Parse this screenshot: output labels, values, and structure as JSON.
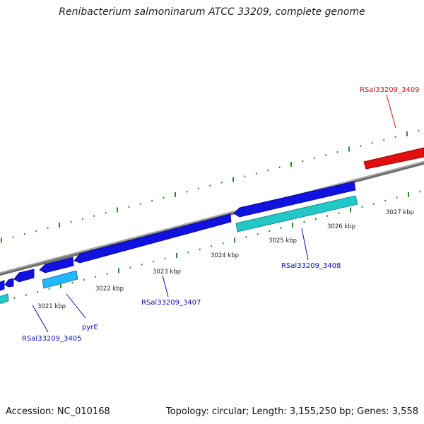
{
  "title": "Renibacterium salmoninarum ATCC 33209, complete genome",
  "footer": {
    "accession": "Accession: NC_010168",
    "summary": "Topology: circular; Length: 3,155,250 bp; Genes: 3,558"
  },
  "colors": {
    "backbone": "#8a8a8a",
    "tick": "#2a8a2a",
    "cds_forward": "#1212e0",
    "cds_reverse_light": "#22b8ff",
    "cds_cyan": "#22c8c8",
    "highlight": "#e01010",
    "label_blue": "#0a0aa8",
    "label_red": "#d01010"
  },
  "scale_labels": [
    "3021 kbp",
    "3022 kbp",
    "3023 kbp",
    "3024 kbp",
    "3025 kbp",
    "3026 kbp",
    "3027 kbp"
  ],
  "gene_labels": [
    {
      "name": "RSal33209_3409",
      "color": "red"
    },
    {
      "name": "RSal33209_3408",
      "color": "blue"
    },
    {
      "name": "RSal33209_3407",
      "color": "blue"
    },
    {
      "name": "pyrE",
      "color": "blue"
    },
    {
      "name": "RSal33209_3405",
      "color": "blue"
    }
  ]
}
